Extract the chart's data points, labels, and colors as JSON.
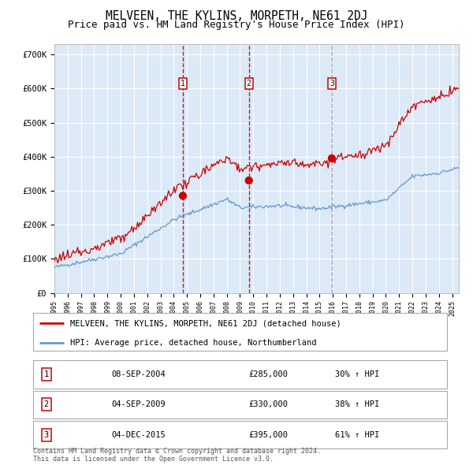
{
  "title": "MELVEEN, THE KYLINS, MORPETH, NE61 2DJ",
  "subtitle": "Price paid vs. HM Land Registry's House Price Index (HPI)",
  "title_fontsize": 10.5,
  "subtitle_fontsize": 9,
  "background_color": "#dce9f7",
  "y_ticks": [
    0,
    100000,
    200000,
    300000,
    400000,
    500000,
    600000,
    700000
  ],
  "y_tick_labels": [
    "£0",
    "£100K",
    "£200K",
    "£300K",
    "£400K",
    "£500K",
    "£600K",
    "£700K"
  ],
  "ylim": [
    0,
    730000
  ],
  "xlim_start": 1995.0,
  "xlim_end": 2025.5,
  "sale_dates": [
    2004.69,
    2009.67,
    2015.92
  ],
  "sale_prices": [
    285000,
    330000,
    395000
  ],
  "sale_labels": [
    "1",
    "2",
    "3"
  ],
  "vline_color": "#cc0000",
  "dot_color": "#cc0000",
  "dot_size": 55,
  "legend_entries": [
    "MELVEEN, THE KYLINS, MORPETH, NE61 2DJ (detached house)",
    "HPI: Average price, detached house, Northumberland"
  ],
  "legend_colors": [
    "#cc0000",
    "#6699cc"
  ],
  "footer_text": "Contains HM Land Registry data © Crown copyright and database right 2024.\nThis data is licensed under the Open Government Licence v3.0.",
  "table_rows": [
    {
      "label": "1",
      "date": "08-SEP-2004",
      "price": "£285,000",
      "hpi": "30% ↑ HPI"
    },
    {
      "label": "2",
      "date": "04-SEP-2009",
      "price": "£330,000",
      "hpi": "38% ↑ HPI"
    },
    {
      "label": "3",
      "date": "04-DEC-2015",
      "price": "£395,000",
      "hpi": "61% ↑ HPI"
    }
  ],
  "red_line_color": "#cc0000",
  "blue_line_color": "#6699cc",
  "grid_color": "#ffffff"
}
